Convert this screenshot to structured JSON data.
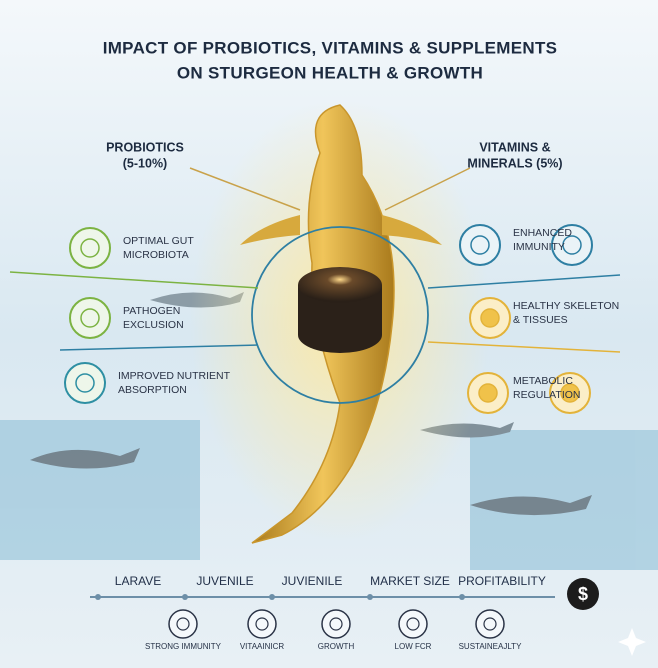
{
  "title": [
    "IMPACT OF PROBIOTICS, VITAMINS & SUPPLEMENTS",
    "ON STURGEON HEALTH & GROWTH"
  ],
  "left": {
    "heading": [
      "PROBIOTICS",
      "(5-10%)"
    ],
    "items": [
      [
        "OPTIMAL GUT",
        "MICROBIOTA"
      ],
      [
        "PATHOGEN",
        "EXCLUSION"
      ],
      [
        "IMPROVED NUTRIENT",
        "ABSORPTION"
      ]
    ]
  },
  "right": {
    "heading": [
      "VITAMINS &",
      "MINERALS (5%)"
    ],
    "items": [
      [
        "ENHANCED",
        "IMMUNITY"
      ],
      [
        "HEALTHY SKELETON",
        "& TISSUES"
      ],
      [
        "METABOLIC",
        "REGULATION"
      ]
    ]
  },
  "timeline": {
    "stages": [
      "LARAVE",
      "JUVENILE",
      "JUVIENILE",
      "MARKET SIZE",
      "PROFITABILITY"
    ],
    "end_icon": "$"
  },
  "benefits": [
    "STRONG IMMUNITY",
    "VITAAINICR",
    "GROWTH",
    "LOW FCR",
    "SUSTAINEAJLTY"
  ]
}
